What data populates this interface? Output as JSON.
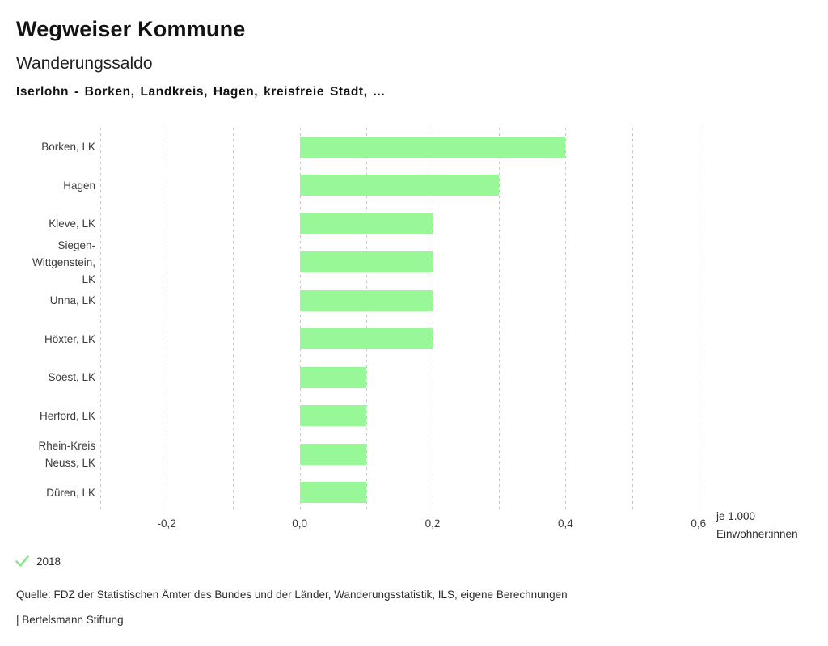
{
  "header": {
    "title": "Wegweiser Kommune",
    "subtitle": "Wanderungssaldo",
    "selection": "Iserlohn - Borken, Landkreis, Hagen, kreisfreie Stadt, ..."
  },
  "chart_data": {
    "type": "bar",
    "orientation": "horizontal",
    "title": "Wanderungssaldo",
    "categories": [
      "Borken, LK",
      "Hagen",
      "Kleve, LK",
      "Siegen-Wittgenstein, LK",
      "Unna, LK",
      "Höxter, LK",
      "Soest, LK",
      "Herford, LK",
      "Rhein-Kreis Neuss, LK",
      "Düren, LK"
    ],
    "category_lines": [
      [
        "Borken, LK"
      ],
      [
        "Hagen"
      ],
      [
        "Kleve, LK"
      ],
      [
        "Siegen-",
        "Wittgenstein,",
        "LK"
      ],
      [
        "Unna, LK"
      ],
      [
        "Höxter, LK"
      ],
      [
        "Soest, LK"
      ],
      [
        "Herford, LK"
      ],
      [
        "Rhein-Kreis",
        "Neuss, LK"
      ],
      [
        "Düren, LK"
      ]
    ],
    "series": [
      {
        "name": "2018",
        "values": [
          0.4,
          0.3,
          0.2,
          0.2,
          0.2,
          0.2,
          0.1,
          0.1,
          0.1,
          0.1
        ]
      }
    ],
    "xlabel": "je 1.000 Einwohner:innen",
    "unit_label_lines": [
      "je 1.000",
      "Einwohner:innen"
    ],
    "xlim": [
      -0.3,
      0.61
    ],
    "grid_step": 0.1,
    "grid_on": true,
    "tick_values": [
      -0.2,
      0.0,
      0.2,
      0.4,
      0.6
    ],
    "tick_labels": [
      "-0,2",
      "0,0",
      "0,2",
      "0,4",
      "0,6"
    ],
    "bar_color": "#98f898",
    "grid_color": "#c6c6c6",
    "legend_position": "bottom-left",
    "legend": [
      {
        "label": "2018",
        "marker": "check",
        "color": "#8fe38f"
      }
    ]
  },
  "footer": {
    "source": "Quelle: FDZ der Statistischen Ämter des Bundes und der Länder, Wanderungsstatistik, ILS, eigene Berechnungen",
    "branding": "| Bertelsmann Stiftung"
  }
}
